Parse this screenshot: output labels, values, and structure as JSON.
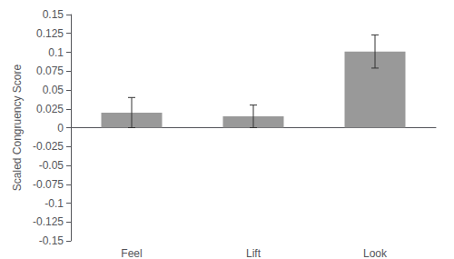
{
  "chart_data": {
    "type": "bar",
    "categories": [
      "Feel",
      "Lift",
      "Look"
    ],
    "values": [
      0.02,
      0.015,
      0.101
    ],
    "errors": [
      0.02,
      0.015,
      0.022
    ],
    "color": "#999999",
    "ylabel": "Scaled Congruency Score",
    "ylim": [
      -0.15,
      0.15
    ],
    "yticks": [
      -0.15,
      -0.125,
      -0.1,
      -0.075,
      -0.05,
      -0.025,
      0,
      0.025,
      0.05,
      0.075,
      0.1,
      0.125,
      0.15
    ],
    "grid": false
  }
}
